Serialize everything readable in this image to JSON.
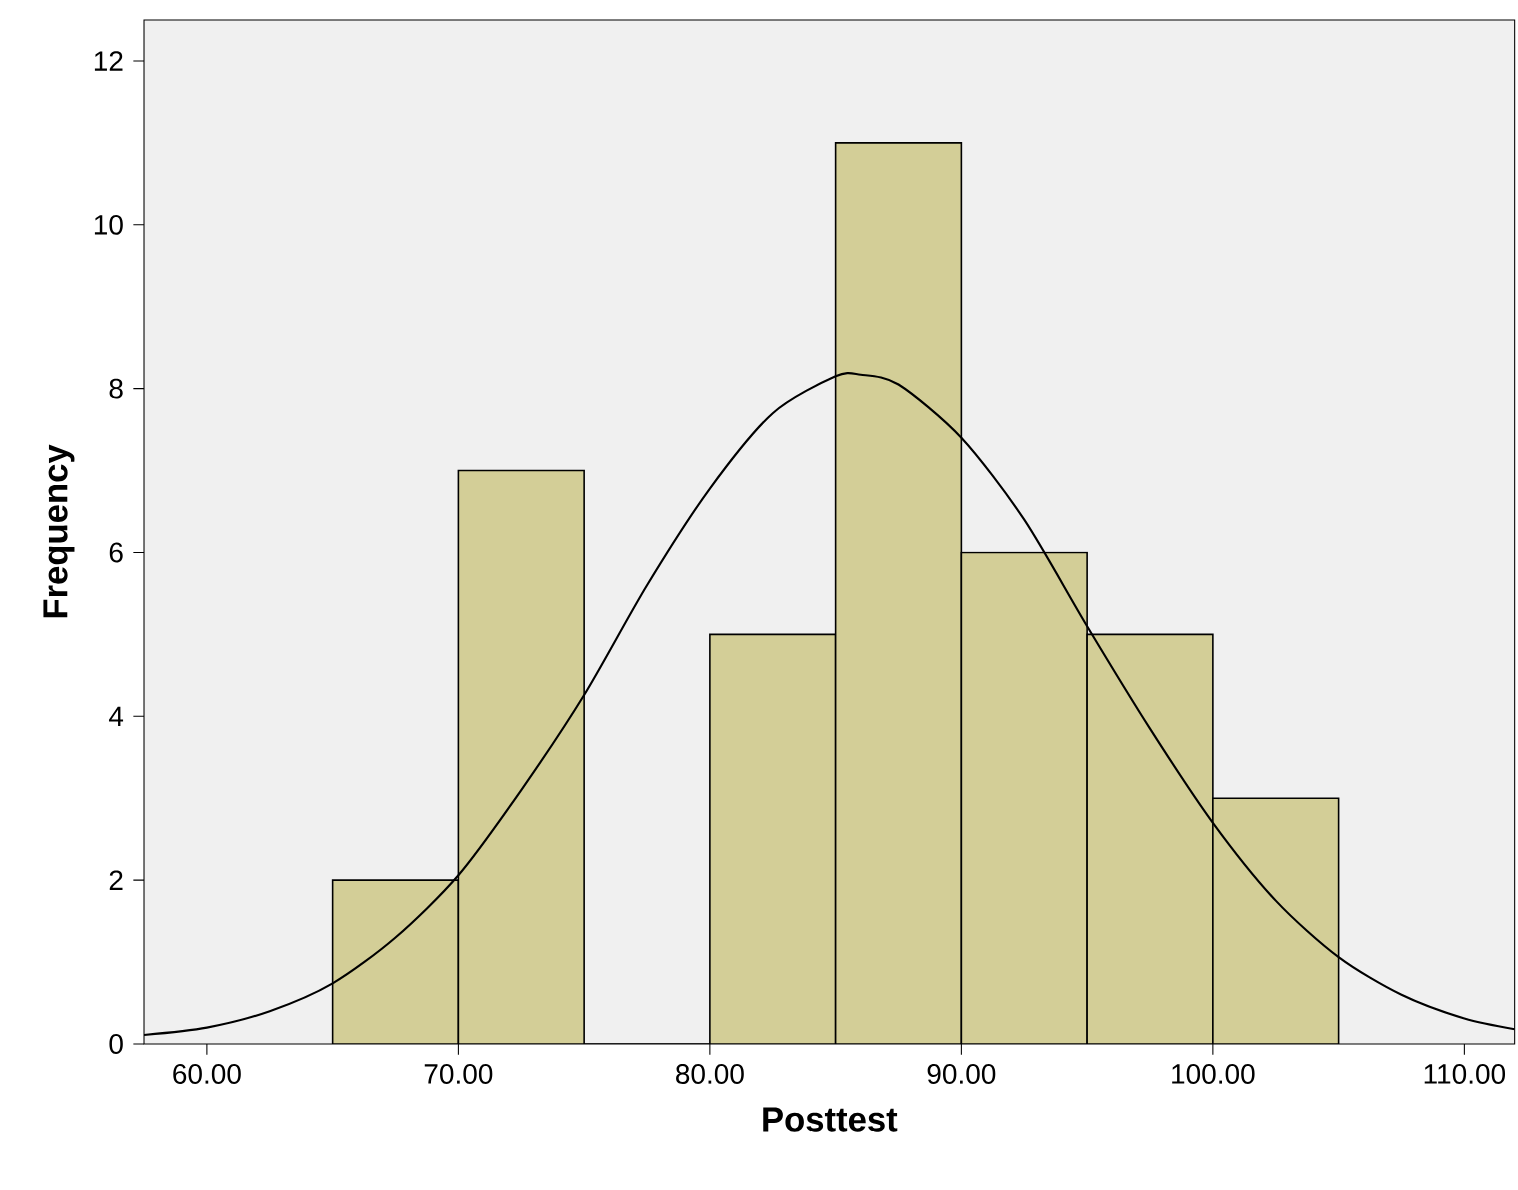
{
  "chart_data": {
    "type": "histogram",
    "xlabel": "Posttest",
    "ylabel": "Frequency",
    "bins": [
      65,
      70,
      75,
      80,
      85,
      90,
      95,
      100,
      105
    ],
    "values": [
      2,
      7,
      0,
      5,
      11,
      6,
      5,
      3
    ],
    "color": "#d3ce97",
    "series": [
      {
        "type": "line",
        "color": "#000000",
        "x": [
          57.5,
          60,
          62.5,
          65,
          67.5,
          70,
          72.5,
          75,
          77.5,
          80,
          82.5,
          85,
          86,
          87.5,
          90,
          92.5,
          95,
          97.5,
          100,
          102.5,
          105,
          107.5,
          110,
          112
        ],
        "values": [
          0.11,
          0.2,
          0.4,
          0.74,
          1.3,
          2.06,
          3.1,
          4.26,
          5.6,
          6.78,
          7.7,
          8.15,
          8.17,
          8.05,
          7.4,
          6.4,
          5.1,
          3.85,
          2.7,
          1.75,
          1.06,
          0.6,
          0.31,
          0.18
        ]
      }
    ],
    "xlim": [
      57.5,
      112
    ],
    "ylim": [
      0,
      12.5
    ],
    "xticks": [
      {
        "value": 60,
        "label": "60.00"
      },
      {
        "value": 70,
        "label": "70.00"
      },
      {
        "value": 80,
        "label": "80.00"
      },
      {
        "value": 90,
        "label": "90.00"
      },
      {
        "value": 100,
        "label": "100.00"
      },
      {
        "value": 110,
        "label": "110.00"
      }
    ],
    "yticks": [
      0,
      2,
      4,
      6,
      8,
      10,
      12
    ]
  }
}
